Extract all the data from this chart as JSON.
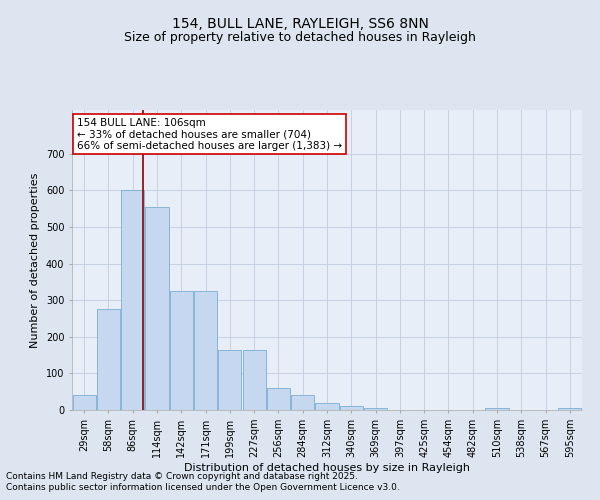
{
  "title1": "154, BULL LANE, RAYLEIGH, SS6 8NN",
  "title2": "Size of property relative to detached houses in Rayleigh",
  "xlabel": "Distribution of detached houses by size in Rayleigh",
  "ylabel": "Number of detached properties",
  "categories": [
    "29sqm",
    "58sqm",
    "86sqm",
    "114sqm",
    "142sqm",
    "171sqm",
    "199sqm",
    "227sqm",
    "256sqm",
    "284sqm",
    "312sqm",
    "340sqm",
    "369sqm",
    "397sqm",
    "425sqm",
    "454sqm",
    "482sqm",
    "510sqm",
    "538sqm",
    "567sqm",
    "595sqm"
  ],
  "values": [
    40,
    275,
    600,
    555,
    325,
    325,
    165,
    165,
    60,
    40,
    20,
    10,
    5,
    0,
    0,
    0,
    0,
    5,
    0,
    0,
    5
  ],
  "bar_color": "#c5d8f0",
  "bar_edge_color": "#7badd4",
  "vline_color": "#8b0000",
  "vline_x_index": 2,
  "annotation_text": "154 BULL LANE: 106sqm\n← 33% of detached houses are smaller (704)\n66% of semi-detached houses are larger (1,383) →",
  "annotation_box_color": "white",
  "annotation_box_edge": "#cc0000",
  "ylim": [
    0,
    820
  ],
  "yticks": [
    0,
    100,
    200,
    300,
    400,
    500,
    600,
    700
  ],
  "bg_color": "#dde6f0",
  "plot_bg_color": "#e8eef8",
  "grid_color": "#c0cce0",
  "footer1": "Contains HM Land Registry data © Crown copyright and database right 2025.",
  "footer2": "Contains public sector information licensed under the Open Government Licence v3.0.",
  "title_fontsize": 10,
  "subtitle_fontsize": 9,
  "axis_label_fontsize": 8,
  "tick_fontsize": 7,
  "annot_fontsize": 7.5,
  "footer_fontsize": 6.5
}
